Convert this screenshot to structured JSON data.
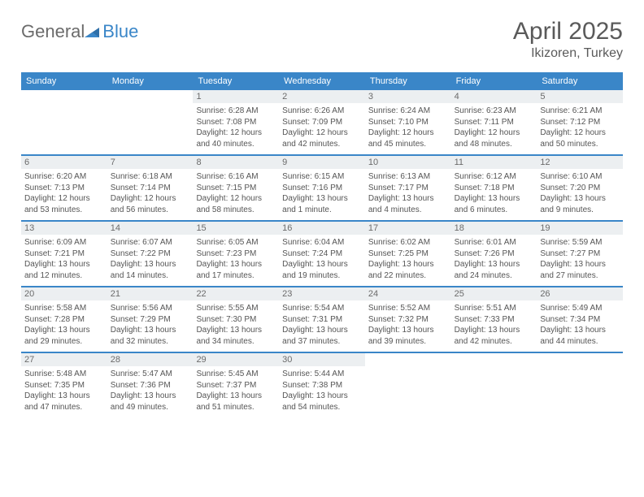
{
  "brand": {
    "name_a": "General",
    "name_b": "Blue"
  },
  "title": {
    "month": "April 2025",
    "location": "Ikizoren, Turkey"
  },
  "colors": {
    "accent": "#3a86c8",
    "daynum_bg": "#eceff1",
    "text": "#555555",
    "heading": "#5a5a5a"
  },
  "fonts": {
    "base": "Arial",
    "title_size": 30,
    "body_size": 10,
    "dow_size": 11
  },
  "days_of_week": [
    "Sunday",
    "Monday",
    "Tuesday",
    "Wednesday",
    "Thursday",
    "Friday",
    "Saturday"
  ],
  "weeks": [
    [
      {
        "n": "",
        "sr": "",
        "ss": "",
        "dl1": "",
        "dl2": ""
      },
      {
        "n": "",
        "sr": "",
        "ss": "",
        "dl1": "",
        "dl2": ""
      },
      {
        "n": "1",
        "sr": "Sunrise: 6:28 AM",
        "ss": "Sunset: 7:08 PM",
        "dl1": "Daylight: 12 hours",
        "dl2": "and 40 minutes."
      },
      {
        "n": "2",
        "sr": "Sunrise: 6:26 AM",
        "ss": "Sunset: 7:09 PM",
        "dl1": "Daylight: 12 hours",
        "dl2": "and 42 minutes."
      },
      {
        "n": "3",
        "sr": "Sunrise: 6:24 AM",
        "ss": "Sunset: 7:10 PM",
        "dl1": "Daylight: 12 hours",
        "dl2": "and 45 minutes."
      },
      {
        "n": "4",
        "sr": "Sunrise: 6:23 AM",
        "ss": "Sunset: 7:11 PM",
        "dl1": "Daylight: 12 hours",
        "dl2": "and 48 minutes."
      },
      {
        "n": "5",
        "sr": "Sunrise: 6:21 AM",
        "ss": "Sunset: 7:12 PM",
        "dl1": "Daylight: 12 hours",
        "dl2": "and 50 minutes."
      }
    ],
    [
      {
        "n": "6",
        "sr": "Sunrise: 6:20 AM",
        "ss": "Sunset: 7:13 PM",
        "dl1": "Daylight: 12 hours",
        "dl2": "and 53 minutes."
      },
      {
        "n": "7",
        "sr": "Sunrise: 6:18 AM",
        "ss": "Sunset: 7:14 PM",
        "dl1": "Daylight: 12 hours",
        "dl2": "and 56 minutes."
      },
      {
        "n": "8",
        "sr": "Sunrise: 6:16 AM",
        "ss": "Sunset: 7:15 PM",
        "dl1": "Daylight: 12 hours",
        "dl2": "and 58 minutes."
      },
      {
        "n": "9",
        "sr": "Sunrise: 6:15 AM",
        "ss": "Sunset: 7:16 PM",
        "dl1": "Daylight: 13 hours",
        "dl2": "and 1 minute."
      },
      {
        "n": "10",
        "sr": "Sunrise: 6:13 AM",
        "ss": "Sunset: 7:17 PM",
        "dl1": "Daylight: 13 hours",
        "dl2": "and 4 minutes."
      },
      {
        "n": "11",
        "sr": "Sunrise: 6:12 AM",
        "ss": "Sunset: 7:18 PM",
        "dl1": "Daylight: 13 hours",
        "dl2": "and 6 minutes."
      },
      {
        "n": "12",
        "sr": "Sunrise: 6:10 AM",
        "ss": "Sunset: 7:20 PM",
        "dl1": "Daylight: 13 hours",
        "dl2": "and 9 minutes."
      }
    ],
    [
      {
        "n": "13",
        "sr": "Sunrise: 6:09 AM",
        "ss": "Sunset: 7:21 PM",
        "dl1": "Daylight: 13 hours",
        "dl2": "and 12 minutes."
      },
      {
        "n": "14",
        "sr": "Sunrise: 6:07 AM",
        "ss": "Sunset: 7:22 PM",
        "dl1": "Daylight: 13 hours",
        "dl2": "and 14 minutes."
      },
      {
        "n": "15",
        "sr": "Sunrise: 6:05 AM",
        "ss": "Sunset: 7:23 PM",
        "dl1": "Daylight: 13 hours",
        "dl2": "and 17 minutes."
      },
      {
        "n": "16",
        "sr": "Sunrise: 6:04 AM",
        "ss": "Sunset: 7:24 PM",
        "dl1": "Daylight: 13 hours",
        "dl2": "and 19 minutes."
      },
      {
        "n": "17",
        "sr": "Sunrise: 6:02 AM",
        "ss": "Sunset: 7:25 PM",
        "dl1": "Daylight: 13 hours",
        "dl2": "and 22 minutes."
      },
      {
        "n": "18",
        "sr": "Sunrise: 6:01 AM",
        "ss": "Sunset: 7:26 PM",
        "dl1": "Daylight: 13 hours",
        "dl2": "and 24 minutes."
      },
      {
        "n": "19",
        "sr": "Sunrise: 5:59 AM",
        "ss": "Sunset: 7:27 PM",
        "dl1": "Daylight: 13 hours",
        "dl2": "and 27 minutes."
      }
    ],
    [
      {
        "n": "20",
        "sr": "Sunrise: 5:58 AM",
        "ss": "Sunset: 7:28 PM",
        "dl1": "Daylight: 13 hours",
        "dl2": "and 29 minutes."
      },
      {
        "n": "21",
        "sr": "Sunrise: 5:56 AM",
        "ss": "Sunset: 7:29 PM",
        "dl1": "Daylight: 13 hours",
        "dl2": "and 32 minutes."
      },
      {
        "n": "22",
        "sr": "Sunrise: 5:55 AM",
        "ss": "Sunset: 7:30 PM",
        "dl1": "Daylight: 13 hours",
        "dl2": "and 34 minutes."
      },
      {
        "n": "23",
        "sr": "Sunrise: 5:54 AM",
        "ss": "Sunset: 7:31 PM",
        "dl1": "Daylight: 13 hours",
        "dl2": "and 37 minutes."
      },
      {
        "n": "24",
        "sr": "Sunrise: 5:52 AM",
        "ss": "Sunset: 7:32 PM",
        "dl1": "Daylight: 13 hours",
        "dl2": "and 39 minutes."
      },
      {
        "n": "25",
        "sr": "Sunrise: 5:51 AM",
        "ss": "Sunset: 7:33 PM",
        "dl1": "Daylight: 13 hours",
        "dl2": "and 42 minutes."
      },
      {
        "n": "26",
        "sr": "Sunrise: 5:49 AM",
        "ss": "Sunset: 7:34 PM",
        "dl1": "Daylight: 13 hours",
        "dl2": "and 44 minutes."
      }
    ],
    [
      {
        "n": "27",
        "sr": "Sunrise: 5:48 AM",
        "ss": "Sunset: 7:35 PM",
        "dl1": "Daylight: 13 hours",
        "dl2": "and 47 minutes."
      },
      {
        "n": "28",
        "sr": "Sunrise: 5:47 AM",
        "ss": "Sunset: 7:36 PM",
        "dl1": "Daylight: 13 hours",
        "dl2": "and 49 minutes."
      },
      {
        "n": "29",
        "sr": "Sunrise: 5:45 AM",
        "ss": "Sunset: 7:37 PM",
        "dl1": "Daylight: 13 hours",
        "dl2": "and 51 minutes."
      },
      {
        "n": "30",
        "sr": "Sunrise: 5:44 AM",
        "ss": "Sunset: 7:38 PM",
        "dl1": "Daylight: 13 hours",
        "dl2": "and 54 minutes."
      },
      {
        "n": "",
        "sr": "",
        "ss": "",
        "dl1": "",
        "dl2": ""
      },
      {
        "n": "",
        "sr": "",
        "ss": "",
        "dl1": "",
        "dl2": ""
      },
      {
        "n": "",
        "sr": "",
        "ss": "",
        "dl1": "",
        "dl2": ""
      }
    ]
  ]
}
